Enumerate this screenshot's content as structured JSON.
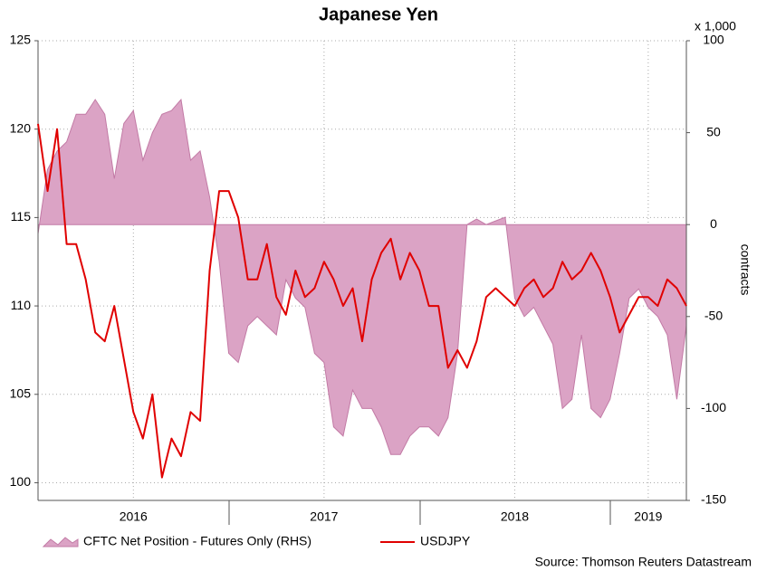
{
  "chart_data": {
    "type": "line",
    "title": "Japanese Yen",
    "y2_unit": "x 1,000",
    "y2label": "contracts",
    "source": "Source: Thomson Reuters Datastream",
    "x": [
      2016.0,
      2016.05,
      2016.1,
      2016.15,
      2016.2,
      2016.25,
      2016.3,
      2016.35,
      2016.4,
      2016.45,
      2016.5,
      2016.55,
      2016.6,
      2016.65,
      2016.7,
      2016.75,
      2016.8,
      2016.85,
      2016.9,
      2016.95,
      2017.0,
      2017.05,
      2017.1,
      2017.15,
      2017.2,
      2017.25,
      2017.3,
      2017.35,
      2017.4,
      2017.45,
      2017.5,
      2017.55,
      2017.6,
      2017.65,
      2017.7,
      2017.75,
      2017.8,
      2017.85,
      2017.9,
      2017.95,
      2018.0,
      2018.05,
      2018.1,
      2018.15,
      2018.2,
      2018.25,
      2018.3,
      2018.35,
      2018.4,
      2018.45,
      2018.5,
      2018.55,
      2018.6,
      2018.65,
      2018.7,
      2018.75,
      2018.8,
      2018.85,
      2018.9,
      2018.95,
      2019.0,
      2019.05,
      2019.1,
      2019.15,
      2019.2,
      2019.25,
      2019.3,
      2019.35,
      2019.4
    ],
    "series": [
      {
        "name": "CFTC Net Position - Futures Only (RHS)",
        "type": "area",
        "axis": "y2",
        "color": "#dba3c5",
        "edge": "#c27aa5",
        "values": [
          -5,
          30,
          40,
          45,
          60,
          60,
          68,
          60,
          25,
          55,
          62,
          35,
          50,
          60,
          62,
          68,
          35,
          40,
          15,
          -20,
          -70,
          -75,
          -55,
          -50,
          -55,
          -60,
          -30,
          -40,
          -45,
          -70,
          -75,
          -110,
          -115,
          -90,
          -100,
          -100,
          -110,
          -125,
          -125,
          -115,
          -110,
          -110,
          -115,
          -105,
          -70,
          0,
          3,
          0,
          2,
          4,
          -40,
          -50,
          -45,
          -55,
          -65,
          -100,
          -95,
          -60,
          -100,
          -105,
          -95,
          -70,
          -40,
          -35,
          -45,
          -50,
          -60,
          -95,
          -55
        ]
      },
      {
        "name": "USDJPY",
        "type": "line",
        "axis": "y",
        "color": "#e00000",
        "values": [
          120.3,
          116.5,
          120,
          113.5,
          113.5,
          111.5,
          108.5,
          108,
          110,
          107,
          104,
          102.5,
          105,
          100.3,
          102.5,
          101.5,
          104,
          103.5,
          112,
          116.5,
          116.5,
          115,
          111.5,
          111.5,
          113.5,
          110.5,
          109.5,
          112,
          110.5,
          111,
          112.5,
          111.5,
          110,
          111,
          108,
          111.5,
          113,
          113.8,
          111.5,
          113,
          112,
          110,
          110,
          106.5,
          107.5,
          106.5,
          108,
          110.5,
          111,
          110.5,
          110,
          111,
          111.5,
          110.5,
          111,
          112.5,
          111.5,
          112,
          113,
          112,
          110.5,
          108.5,
          109.5,
          110.5,
          110.5,
          110,
          111.5,
          111,
          110
        ]
      }
    ],
    "xlim": [
      2016,
      2019.4
    ],
    "xticks": [
      {
        "value": 2016.5,
        "label": "2016"
      },
      {
        "value": 2017.5,
        "label": "2017"
      },
      {
        "value": 2018.5,
        "label": "2018"
      },
      {
        "value": 2019.2,
        "label": "2019"
      }
    ],
    "ylim": [
      99,
      125
    ],
    "yticks": [
      100,
      105,
      110,
      115,
      120,
      125
    ],
    "y2lim": [
      -150,
      100
    ],
    "y2ticks": [
      -150,
      -100,
      -50,
      0,
      50,
      100
    ],
    "grid": true
  }
}
